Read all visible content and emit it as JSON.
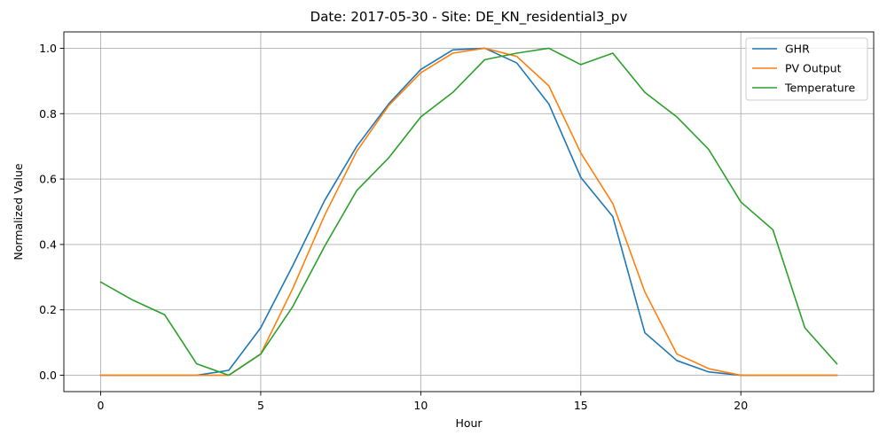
{
  "chart_data": {
    "type": "line",
    "title": "Date: 2017-05-30 - Site: DE_KN_residential3_pv",
    "xlabel": "Hour",
    "ylabel": "Normalized Value",
    "xlim": [
      -1.15,
      24.15
    ],
    "ylim": [
      -0.05,
      1.05
    ],
    "x_ticks": [
      0,
      5,
      10,
      15,
      20
    ],
    "x_tick_labels": [
      "0",
      "5",
      "10",
      "15",
      "20"
    ],
    "y_ticks": [
      0.0,
      0.2,
      0.4,
      0.6,
      0.8,
      1.0
    ],
    "y_tick_labels": [
      "0.0",
      "0.2",
      "0.4",
      "0.6",
      "0.8",
      "1.0"
    ],
    "grid": true,
    "legend_position": "top-right",
    "x": [
      0,
      1,
      2,
      3,
      4,
      5,
      6,
      7,
      8,
      9,
      10,
      11,
      12,
      13,
      14,
      15,
      16,
      17,
      18,
      19,
      20,
      21,
      22,
      23
    ],
    "series": [
      {
        "name": "GHR",
        "color": "#1f77b4",
        "values": [
          0,
          0,
          0,
          0,
          0.015,
          0.145,
          0.335,
          0.535,
          0.7,
          0.83,
          0.935,
          0.995,
          1.0,
          0.955,
          0.83,
          0.605,
          0.485,
          0.13,
          0.045,
          0.01,
          0,
          0,
          0,
          0
        ]
      },
      {
        "name": "PV Output",
        "color": "#ff7f0e",
        "values": [
          0,
          0,
          0,
          0,
          0,
          0.065,
          0.265,
          0.49,
          0.685,
          0.825,
          0.925,
          0.985,
          1.0,
          0.975,
          0.885,
          0.68,
          0.525,
          0.255,
          0.065,
          0.02,
          0,
          0,
          0,
          0
        ]
      },
      {
        "name": "Temperature",
        "color": "#2ca02c",
        "values": [
          0.285,
          0.23,
          0.185,
          0.035,
          0.0,
          0.065,
          0.21,
          0.395,
          0.565,
          0.665,
          0.79,
          0.865,
          0.965,
          0.985,
          1.0,
          0.95,
          0.985,
          0.865,
          0.79,
          0.69,
          0.53,
          0.445,
          0.145,
          0.035
        ]
      }
    ]
  }
}
